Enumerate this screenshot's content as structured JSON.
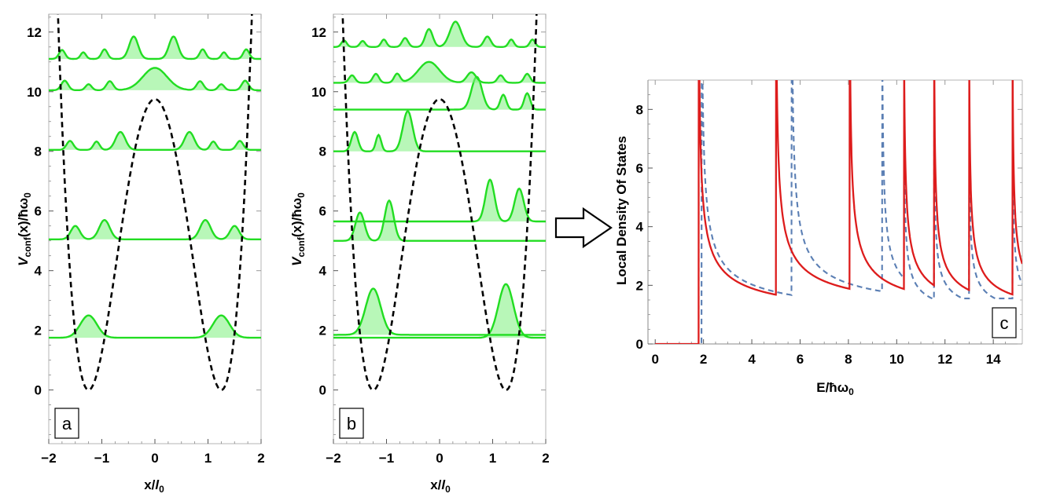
{
  "chart_data": [
    {
      "panel": "a",
      "type": "line",
      "xlabel": "x/l0",
      "ylabel": "Vconf(x)/ħω0",
      "xlim": [
        -2,
        2
      ],
      "ylim": [
        -1.8,
        12.6
      ],
      "xticks": [
        "-2",
        "-1",
        "0",
        "1",
        "2"
      ],
      "yticks": [
        "0",
        "2",
        "4",
        "6",
        "8",
        "10",
        "12"
      ],
      "potential": {
        "style": "dashed",
        "color": "#000000",
        "shape": "double-well",
        "barrier_height": 9.75,
        "well_minima_x": [
          -1.25,
          1.25
        ]
      },
      "levels": [
        {
          "E": 1.75,
          "peaks": [
            {
              "x": -1.25,
              "h": 0.75,
              "w": 0.22
            },
            {
              "x": 1.25,
              "h": 0.75,
              "w": 0.22
            }
          ]
        },
        {
          "E": 5.05,
          "peaks": [
            {
              "x": -1.5,
              "h": 0.45,
              "w": 0.12
            },
            {
              "x": -0.95,
              "h": 0.65,
              "w": 0.14
            },
            {
              "x": 0.95,
              "h": 0.65,
              "w": 0.14
            },
            {
              "x": 1.5,
              "h": 0.45,
              "w": 0.12
            }
          ]
        },
        {
          "E": 8.05,
          "peaks": [
            {
              "x": -1.6,
              "h": 0.3,
              "w": 0.09
            },
            {
              "x": -1.1,
              "h": 0.28,
              "w": 0.08
            },
            {
              "x": -0.65,
              "h": 0.6,
              "w": 0.13
            },
            {
              "x": 0.65,
              "h": 0.6,
              "w": 0.13
            },
            {
              "x": 1.1,
              "h": 0.28,
              "w": 0.08
            },
            {
              "x": 1.6,
              "h": 0.3,
              "w": 0.09
            }
          ]
        },
        {
          "E": 10.05,
          "peaks": [
            {
              "x": -1.7,
              "h": 0.32,
              "w": 0.09
            },
            {
              "x": -1.25,
              "h": 0.2,
              "w": 0.08
            },
            {
              "x": -0.85,
              "h": 0.3,
              "w": 0.09
            },
            {
              "x": 0,
              "h": 0.75,
              "w": 0.32
            },
            {
              "x": 0.85,
              "h": 0.3,
              "w": 0.09
            },
            {
              "x": 1.25,
              "h": 0.2,
              "w": 0.08
            },
            {
              "x": 1.7,
              "h": 0.32,
              "w": 0.09
            }
          ]
        },
        {
          "E": 11.1,
          "peaks": [
            {
              "x": -1.75,
              "h": 0.3,
              "w": 0.08
            },
            {
              "x": -1.35,
              "h": 0.22,
              "w": 0.07
            },
            {
              "x": -0.95,
              "h": 0.32,
              "w": 0.08
            },
            {
              "x": -0.4,
              "h": 0.75,
              "w": 0.12
            },
            {
              "x": 0.35,
              "h": 0.75,
              "w": 0.12
            },
            {
              "x": 0.9,
              "h": 0.32,
              "w": 0.08
            },
            {
              "x": 1.3,
              "h": 0.22,
              "w": 0.07
            },
            {
              "x": 1.72,
              "h": 0.32,
              "w": 0.08
            }
          ]
        }
      ],
      "label": "a"
    },
    {
      "panel": "b",
      "type": "line",
      "xlabel": "x/l0",
      "ylabel": "Vconf(x)/ħω0",
      "xlim": [
        -2,
        2
      ],
      "ylim": [
        -1.8,
        12.6
      ],
      "xticks": [
        "-2",
        "-1",
        "0",
        "1",
        "2"
      ],
      "yticks": [
        "0",
        "2",
        "4",
        "6",
        "8",
        "10",
        "12"
      ],
      "potential": {
        "style": "dashed",
        "color": "#000000",
        "shape": "asymmetric double-well",
        "barrier_height": 9.75,
        "well_minima_x": [
          -1.25,
          1.25
        ]
      },
      "levels": [
        {
          "E": 1.75,
          "peaks": [
            {
              "x": 1.25,
              "h": 1.8,
              "w": 0.2
            }
          ]
        },
        {
          "E": 1.85,
          "peaks": [
            {
              "x": -1.25,
              "h": 1.55,
              "w": 0.2
            }
          ]
        },
        {
          "E": 5.0,
          "peaks": [
            {
              "x": -1.5,
              "h": 0.95,
              "w": 0.12
            },
            {
              "x": -0.95,
              "h": 1.35,
              "w": 0.12
            }
          ]
        },
        {
          "E": 5.65,
          "peaks": [
            {
              "x": 0.95,
              "h": 1.4,
              "w": 0.12
            },
            {
              "x": 1.5,
              "h": 1.1,
              "w": 0.12
            }
          ]
        },
        {
          "E": 8.0,
          "peaks": [
            {
              "x": -1.6,
              "h": 0.65,
              "w": 0.09
            },
            {
              "x": -1.15,
              "h": 0.55,
              "w": 0.07
            },
            {
              "x": -0.6,
              "h": 1.35,
              "w": 0.13
            }
          ]
        },
        {
          "E": 9.4,
          "peaks": [
            {
              "x": 0.7,
              "h": 1.1,
              "w": 0.14
            },
            {
              "x": 1.2,
              "h": 0.5,
              "w": 0.08
            },
            {
              "x": 1.65,
              "h": 0.55,
              "w": 0.08
            }
          ]
        },
        {
          "E": 10.3,
          "peaks": [
            {
              "x": -1.65,
              "h": 0.25,
              "w": 0.08
            },
            {
              "x": -1.2,
              "h": 0.3,
              "w": 0.08
            },
            {
              "x": -0.8,
              "h": 0.3,
              "w": 0.08
            },
            {
              "x": -0.2,
              "h": 0.7,
              "w": 0.28
            },
            {
              "x": 0.6,
              "h": 0.35,
              "w": 0.12
            },
            {
              "x": 1.15,
              "h": 0.25,
              "w": 0.08
            },
            {
              "x": 1.65,
              "h": 0.3,
              "w": 0.08
            }
          ]
        },
        {
          "E": 11.5,
          "peaks": [
            {
              "x": -1.8,
              "h": 0.22,
              "w": 0.07
            },
            {
              "x": -1.45,
              "h": 0.2,
              "w": 0.07
            },
            {
              "x": -1.05,
              "h": 0.25,
              "w": 0.07
            },
            {
              "x": -0.65,
              "h": 0.3,
              "w": 0.08
            },
            {
              "x": -0.2,
              "h": 0.6,
              "w": 0.1
            },
            {
              "x": 0.3,
              "h": 0.85,
              "w": 0.15
            },
            {
              "x": 0.9,
              "h": 0.35,
              "w": 0.09
            },
            {
              "x": 1.35,
              "h": 0.25,
              "w": 0.07
            },
            {
              "x": 1.75,
              "h": 0.25,
              "w": 0.07
            }
          ]
        }
      ],
      "label": "b"
    },
    {
      "panel": "c",
      "type": "line",
      "xlabel": "E/ħω0",
      "ylabel": "Local Density Of States",
      "xlim": [
        -0.3,
        15.2
      ],
      "ylim": [
        0,
        9
      ],
      "xticks": [
        "0",
        "2",
        "4",
        "6",
        "8",
        "10",
        "12",
        "14"
      ],
      "yticks": [
        "0",
        "2",
        "4",
        "6",
        "8"
      ],
      "series": [
        {
          "style": "solid",
          "color": "#dd1c1c",
          "onsets": [
            1.8,
            5.0,
            8.05,
            10.3,
            11.55,
            13.0,
            14.8
          ],
          "amps": [
            2.15,
            2.2,
            2.05,
            1.75,
            1.6,
            1.55,
            1.5
          ]
        },
        {
          "style": "dashed",
          "color": "#5b7fb4",
          "onsets": [
            1.92,
            5.65,
            9.4,
            10.3,
            11.55,
            13.0,
            14.8
          ],
          "amps": [
            2.3,
            2.25,
            1.7,
            1.15,
            1.1,
            1.05,
            1.0
          ]
        }
      ],
      "label": "c"
    }
  ],
  "arrow_icon": "right-arrow-icon"
}
